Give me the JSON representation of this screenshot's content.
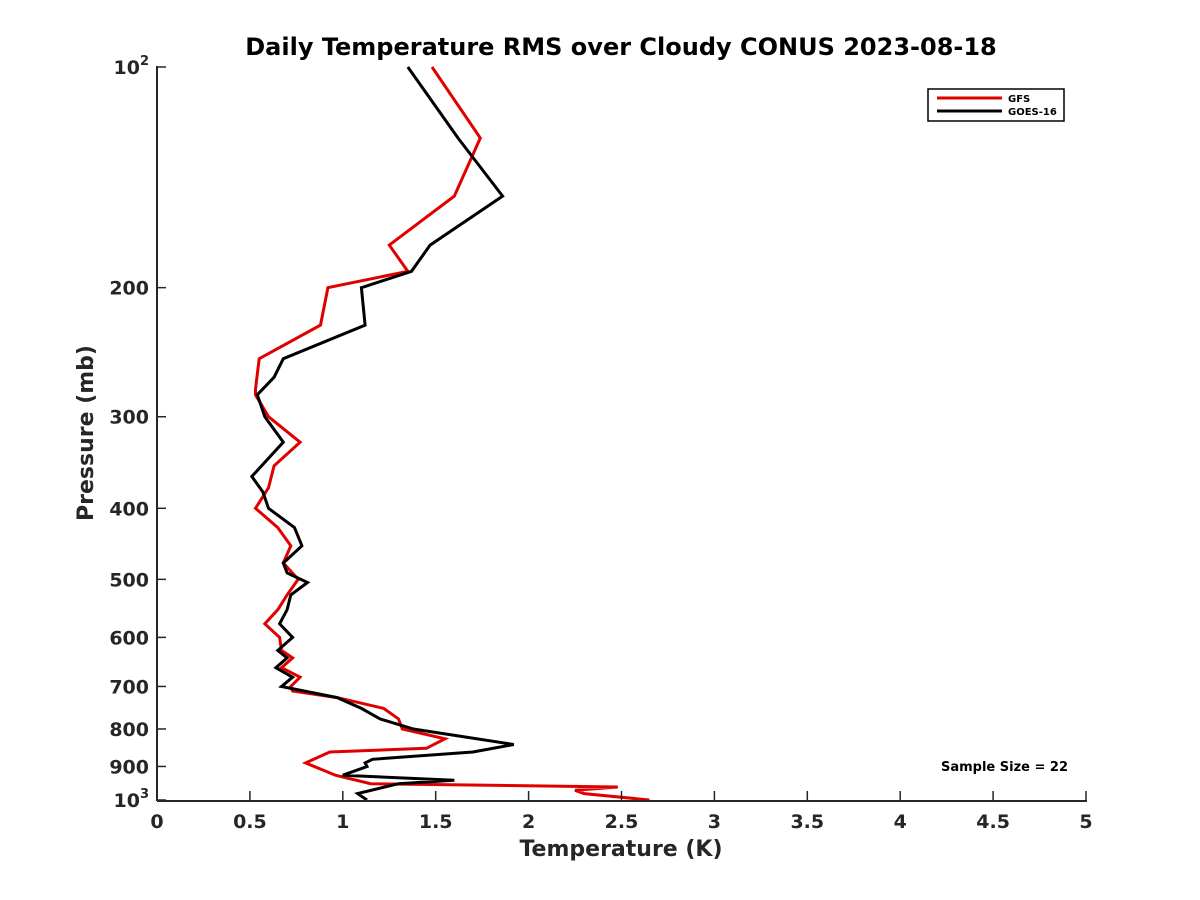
{
  "chart_data": {
    "type": "line",
    "title": "Daily Temperature RMS over Cloudy CONUS 2023-08-18",
    "xlabel": "Temperature (K)",
    "ylabel": "Pressure (mb)",
    "xlim": [
      0,
      5
    ],
    "ylim": [
      100,
      1000
    ],
    "y_scale": "log",
    "y_reversed": true,
    "legend_position": "top-right",
    "grid": false,
    "x_ticks": [
      "0",
      "0.5",
      "1",
      "1.5",
      "2",
      "2.5",
      "3",
      "3.5",
      "4",
      "4.5",
      "5"
    ],
    "y_ticks": [
      {
        "value": 100,
        "base": "10",
        "exp": "2"
      },
      {
        "value": 200,
        "label": "200"
      },
      {
        "value": 300,
        "label": "300"
      },
      {
        "value": 400,
        "label": "400"
      },
      {
        "value": 500,
        "label": "500"
      },
      {
        "value": 600,
        "label": "600"
      },
      {
        "value": 700,
        "label": "700"
      },
      {
        "value": 800,
        "label": "800"
      },
      {
        "value": 900,
        "label": "900"
      },
      {
        "value": 1000,
        "base": "10",
        "exp": "3"
      }
    ],
    "annotation": "Sample Size = 22",
    "series": [
      {
        "name": "GFS",
        "color": "#e00000",
        "points": [
          [
            1.48,
            100
          ],
          [
            1.74,
            125
          ],
          [
            1.6,
            150
          ],
          [
            1.25,
            175
          ],
          [
            1.35,
            190
          ],
          [
            0.92,
            200
          ],
          [
            0.88,
            225
          ],
          [
            0.55,
            250
          ],
          [
            0.53,
            275
          ],
          [
            0.53,
            280
          ],
          [
            0.6,
            300
          ],
          [
            0.77,
            325
          ],
          [
            0.63,
            350
          ],
          [
            0.6,
            375
          ],
          [
            0.53,
            400
          ],
          [
            0.65,
            425
          ],
          [
            0.72,
            450
          ],
          [
            0.68,
            475
          ],
          [
            0.76,
            500
          ],
          [
            0.7,
            525
          ],
          [
            0.65,
            550
          ],
          [
            0.58,
            575
          ],
          [
            0.66,
            600
          ],
          [
            0.67,
            625
          ],
          [
            0.73,
            640
          ],
          [
            0.67,
            660
          ],
          [
            0.77,
            680
          ],
          [
            0.72,
            700
          ],
          [
            0.73,
            710
          ],
          [
            0.97,
            725
          ],
          [
            1.22,
            750
          ],
          [
            1.3,
            775
          ],
          [
            1.32,
            800
          ],
          [
            1.55,
            825
          ],
          [
            1.45,
            850
          ],
          [
            0.93,
            860
          ],
          [
            0.8,
            890
          ],
          [
            0.96,
            925
          ],
          [
            1.15,
            950
          ],
          [
            2.48,
            960
          ],
          [
            2.25,
            970
          ],
          [
            2.3,
            980
          ],
          [
            2.65,
            1000
          ]
        ]
      },
      {
        "name": "GOES-16",
        "color": "#000000",
        "points": [
          [
            1.35,
            100
          ],
          [
            1.62,
            125
          ],
          [
            1.86,
            150
          ],
          [
            1.47,
            175
          ],
          [
            1.37,
            190
          ],
          [
            1.1,
            200
          ],
          [
            1.12,
            225
          ],
          [
            0.68,
            250
          ],
          [
            0.63,
            265
          ],
          [
            0.54,
            280
          ],
          [
            0.58,
            300
          ],
          [
            0.68,
            325
          ],
          [
            0.51,
            362
          ],
          [
            0.57,
            380
          ],
          [
            0.6,
            400
          ],
          [
            0.74,
            425
          ],
          [
            0.78,
            450
          ],
          [
            0.68,
            475
          ],
          [
            0.7,
            490
          ],
          [
            0.81,
            505
          ],
          [
            0.72,
            525
          ],
          [
            0.7,
            550
          ],
          [
            0.66,
            575
          ],
          [
            0.73,
            600
          ],
          [
            0.65,
            625
          ],
          [
            0.7,
            640
          ],
          [
            0.64,
            660
          ],
          [
            0.73,
            680
          ],
          [
            0.67,
            700
          ],
          [
            0.97,
            725
          ],
          [
            1.1,
            750
          ],
          [
            1.2,
            775
          ],
          [
            1.38,
            800
          ],
          [
            1.92,
            840
          ],
          [
            1.7,
            860
          ],
          [
            1.16,
            880
          ],
          [
            1.12,
            890
          ],
          [
            1.13,
            900
          ],
          [
            1.0,
            925
          ],
          [
            1.6,
            940
          ],
          [
            1.3,
            950
          ],
          [
            1.08,
            980
          ],
          [
            1.13,
            1000
          ]
        ]
      }
    ]
  }
}
